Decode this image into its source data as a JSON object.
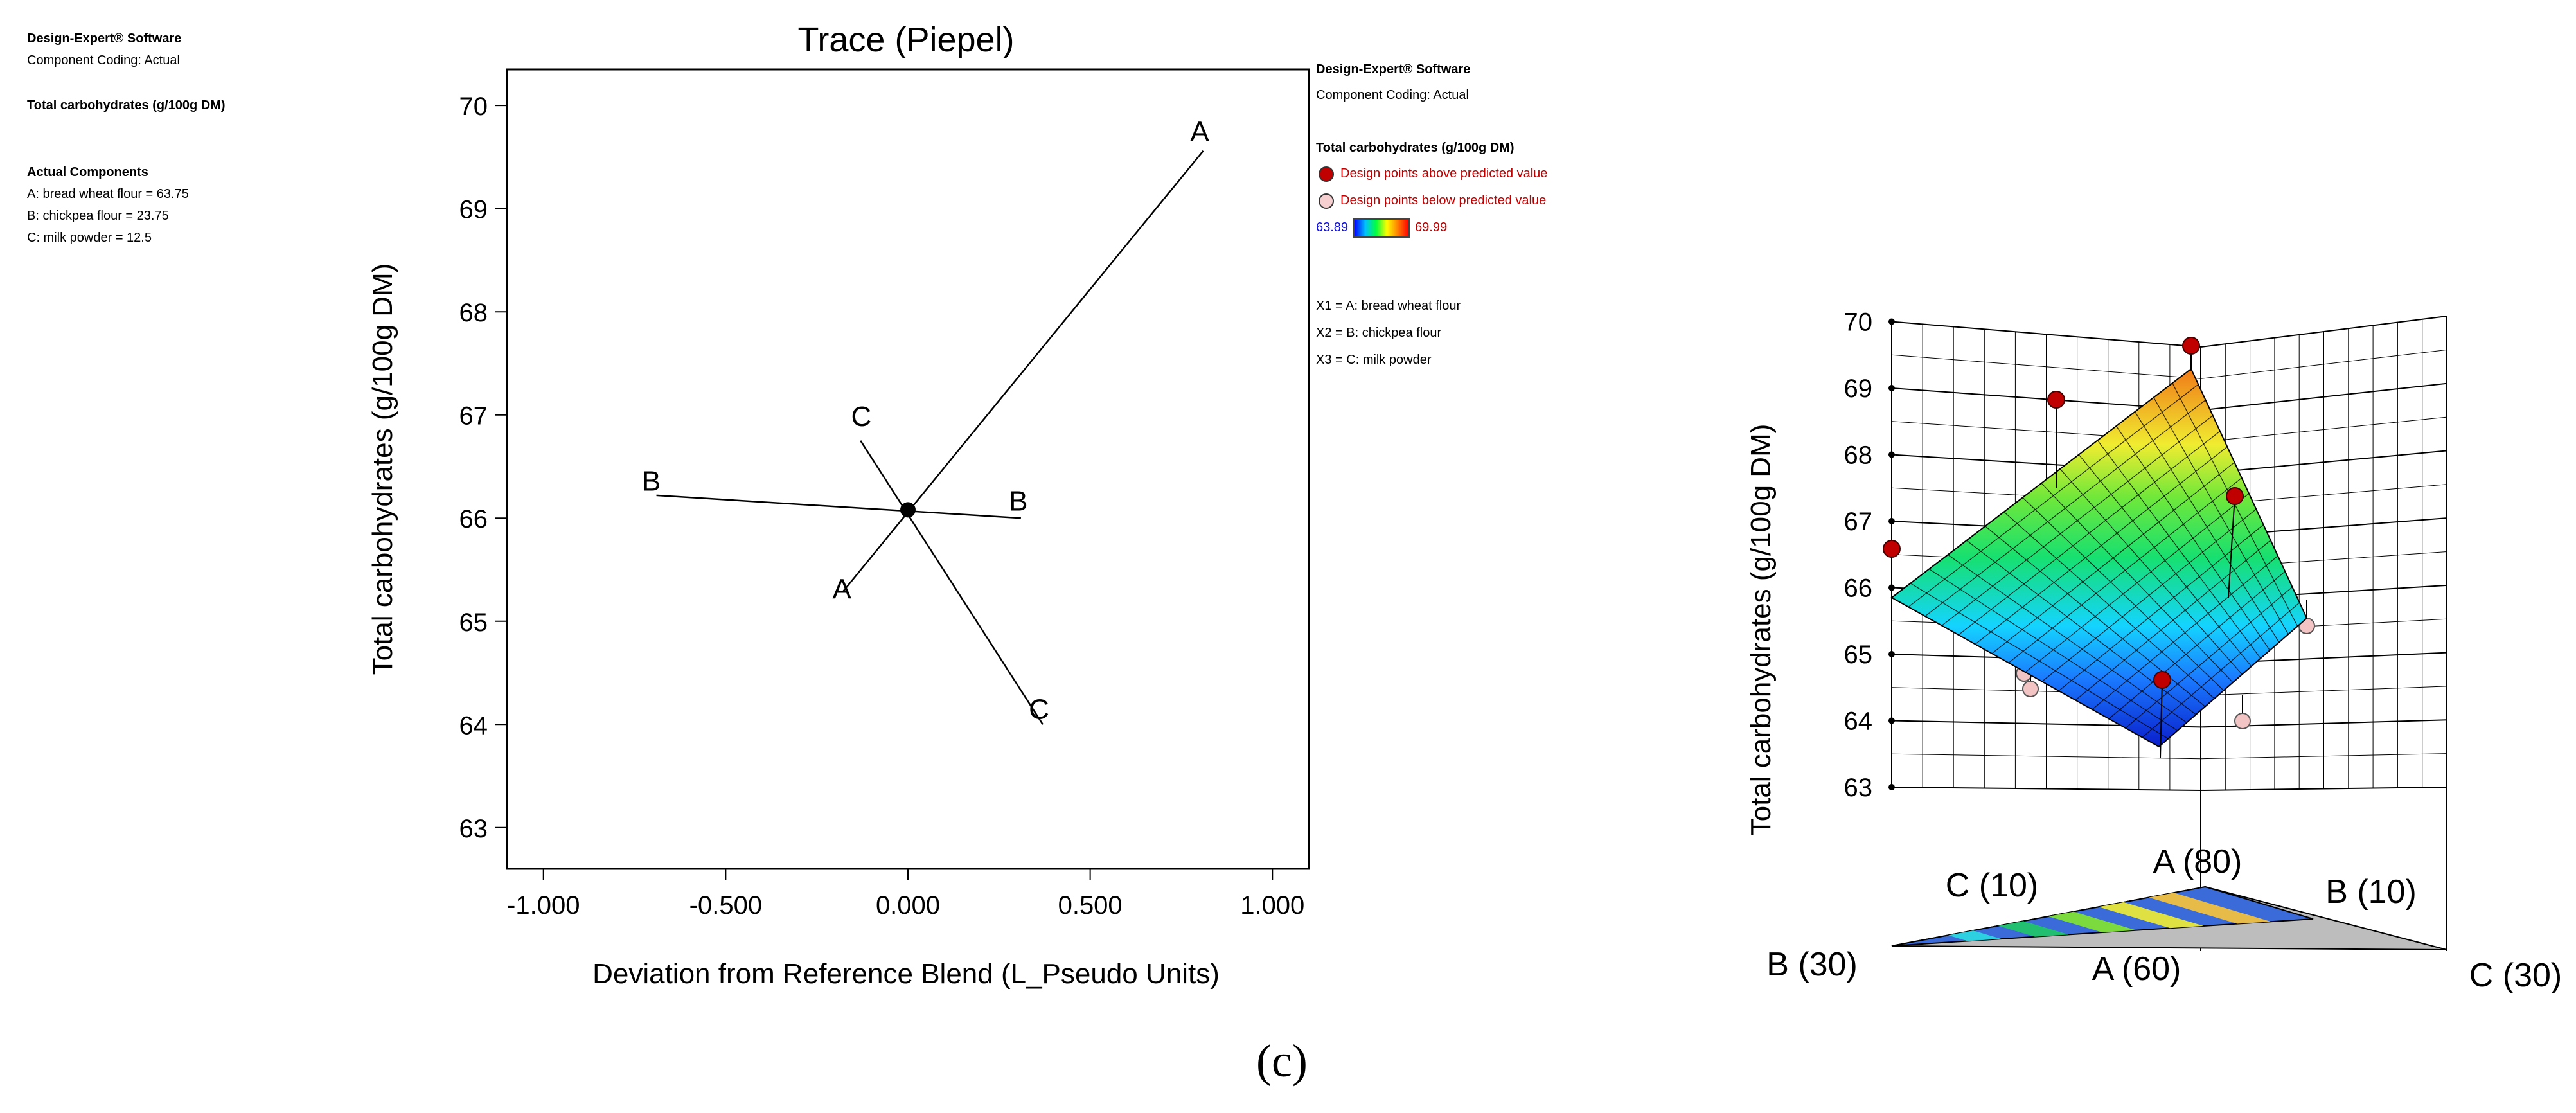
{
  "left_info": {
    "software": "Design-Expert® Software",
    "coding": "Component Coding: Actual",
    "response": "Total carbohydrates (g/100g DM)",
    "components_title": "Actual Components",
    "components": [
      "A: bread wheat flour = 63.75",
      "B: chickpea flour = 23.75",
      "C: milk powder = 12.5"
    ]
  },
  "right_info": {
    "software": "Design-Expert® Software",
    "coding": "Component Coding: Actual",
    "response": "Total carbohydrates (g/100g DM)",
    "legend_above": "Design points above predicted value",
    "legend_below": "Design points below predicted value",
    "color_min": "63.89",
    "color_max": "69.99",
    "factors": [
      "X1 = A: bread wheat flour",
      "X2 = B: chickpea flour",
      "X3 = C: milk powder"
    ]
  },
  "chart_data": [
    {
      "type": "line",
      "title": "Trace (Piepel)",
      "xlabel": "Deviation from Reference Blend (L_Pseudo Units)",
      "ylabel": "Total carbohydrates (g/100g DM)",
      "xlim": [
        -1.1,
        1.1
      ],
      "ylim": [
        62.6,
        70.35
      ],
      "xticks": [
        "-1.000",
        "-0.500",
        "0.000",
        "0.500",
        "1.000"
      ],
      "yticks": [
        "63",
        "64",
        "65",
        "66",
        "67",
        "68",
        "69",
        "70"
      ],
      "reference_point": {
        "x": 0.0,
        "y": 66.08
      },
      "series": [
        {
          "name": "A",
          "x": [
            -0.18,
            0.81
          ],
          "y": [
            65.28,
            69.56
          ],
          "label_start": "A",
          "label_end": "A"
        },
        {
          "name": "B",
          "x": [
            -0.69,
            0.31
          ],
          "y": [
            66.22,
            66.0
          ],
          "label_start": "B",
          "label_end": "B"
        },
        {
          "name": "C",
          "x": [
            -0.13,
            0.37
          ],
          "y": [
            66.75,
            64.0
          ],
          "label_start": "C",
          "label_end": "C"
        }
      ]
    },
    {
      "type": "surface",
      "zlabel": "Total carbohydrates (g/100g DM)",
      "zticks": [
        "63",
        "64",
        "65",
        "66",
        "67",
        "68",
        "69",
        "70"
      ],
      "zlim": [
        63,
        70
      ],
      "color_range": [
        63.89,
        69.99
      ],
      "surface_corners": {
        "A_80": 68.9,
        "B_30": 65.85,
        "C_30": 65.05,
        "A_60": 63.95
      },
      "points_above": [
        69.45,
        68.6,
        67.1,
        66.3,
        64.5
      ],
      "points_below": [
        65.2,
        64.55,
        64.35,
        63.95
      ],
      "base_labels": {
        "a_max": "A (80)",
        "b_min": "B (10)",
        "c_min": "C (10)",
        "b_max": "B (30)",
        "a_min": "A (60)",
        "c_max": "C (30)"
      }
    }
  ],
  "figure_label": "(c)",
  "colors": {
    "above": "#c00000",
    "below": "#f2c4c4",
    "text_red": "#c00000",
    "text_blue": "#1010e0"
  }
}
